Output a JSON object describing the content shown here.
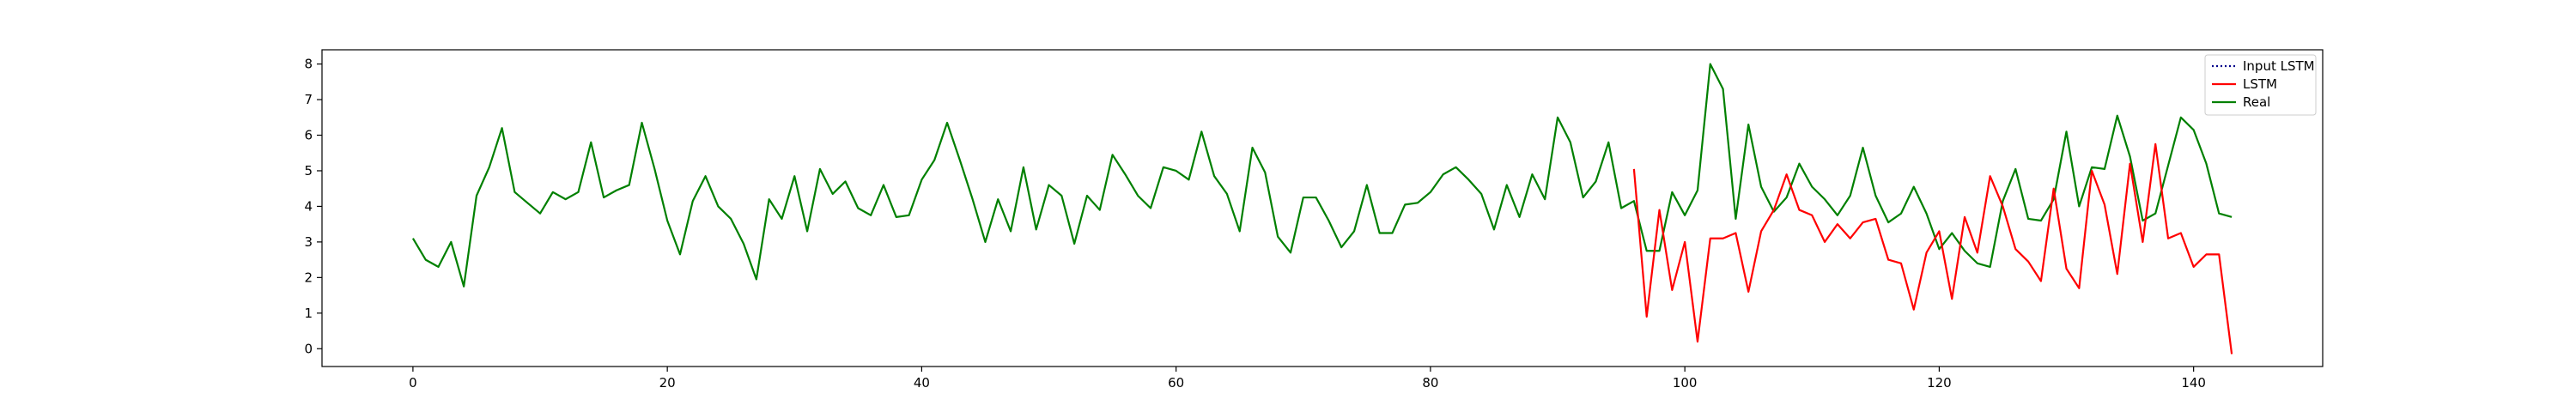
{
  "chart_data": {
    "type": "line",
    "title": "",
    "xlabel": "",
    "ylabel": "",
    "xlim": [
      -7.15,
      150.15
    ],
    "ylim": [
      -0.5,
      8.4
    ],
    "x_ticks": [
      0,
      20,
      40,
      60,
      80,
      100,
      120,
      140
    ],
    "y_ticks": [
      0,
      1,
      2,
      3,
      4,
      5,
      6,
      7,
      8
    ],
    "grid": false,
    "legend_position": "top-right",
    "series": [
      {
        "name": "Input LSTM",
        "color": "#00008b",
        "style": "dotted",
        "x": [],
        "y": []
      },
      {
        "name": "LSTM",
        "color": "#ff0000",
        "style": "solid",
        "x": [
          96,
          97,
          98,
          99,
          100,
          101,
          102,
          103,
          104,
          105,
          106,
          107,
          108,
          109,
          110,
          111,
          112,
          113,
          114,
          115,
          116,
          117,
          118,
          119,
          120,
          121,
          122,
          123,
          124,
          125,
          126,
          127,
          128,
          129,
          130,
          131,
          132,
          133,
          134,
          135,
          136,
          137,
          138,
          139,
          140,
          141,
          142,
          143
        ],
        "y": [
          5.05,
          0.9,
          3.9,
          1.65,
          3.0,
          0.2,
          3.1,
          3.1,
          3.25,
          1.6,
          3.3,
          3.9,
          4.9,
          3.9,
          3.75,
          3.0,
          3.5,
          3.1,
          3.55,
          3.65,
          2.5,
          2.4,
          1.1,
          2.7,
          3.3,
          1.4,
          3.7,
          2.7,
          4.85,
          4.0,
          2.8,
          2.45,
          1.9,
          4.5,
          2.25,
          1.7,
          5.0,
          4.05,
          2.1,
          5.2,
          3.0,
          5.75,
          3.1,
          3.25,
          2.3,
          2.65,
          2.65,
          -0.15
        ]
      },
      {
        "name": "Real",
        "color": "#008000",
        "style": "solid",
        "x": [
          0,
          1,
          2,
          3,
          4,
          5,
          6,
          7,
          8,
          9,
          10,
          11,
          12,
          13,
          14,
          15,
          16,
          17,
          18,
          19,
          20,
          21,
          22,
          23,
          24,
          25,
          26,
          27,
          28,
          29,
          30,
          31,
          32,
          33,
          34,
          35,
          36,
          37,
          38,
          39,
          40,
          41,
          42,
          43,
          44,
          45,
          46,
          47,
          48,
          49,
          50,
          51,
          52,
          53,
          54,
          55,
          56,
          57,
          58,
          59,
          60,
          61,
          62,
          63,
          64,
          65,
          66,
          67,
          68,
          69,
          70,
          71,
          72,
          73,
          74,
          75,
          76,
          77,
          78,
          79,
          80,
          81,
          82,
          83,
          84,
          85,
          86,
          87,
          88,
          89,
          90,
          91,
          92,
          93,
          94,
          95,
          96,
          97,
          98,
          99,
          100,
          101,
          102,
          103,
          104,
          105,
          106,
          107,
          108,
          109,
          110,
          111,
          112,
          113,
          114,
          115,
          116,
          117,
          118,
          119,
          120,
          121,
          122,
          123,
          124,
          125,
          126,
          127,
          128,
          129,
          130,
          131,
          132,
          133,
          134,
          135,
          136,
          137,
          138,
          139,
          140,
          141,
          142,
          143
        ],
        "y": [
          3.1,
          2.5,
          2.3,
          3.0,
          1.75,
          4.3,
          5.1,
          6.2,
          4.4,
          4.1,
          3.8,
          4.4,
          4.2,
          4.4,
          5.8,
          4.25,
          4.45,
          4.6,
          6.35,
          5.05,
          3.6,
          2.65,
          4.15,
          4.85,
          4.0,
          3.65,
          2.95,
          1.95,
          4.2,
          3.65,
          4.85,
          3.3,
          5.05,
          4.35,
          4.7,
          3.95,
          3.75,
          4.6,
          3.7,
          3.75,
          4.75,
          5.3,
          6.35,
          5.3,
          4.2,
          3.0,
          4.2,
          3.3,
          5.1,
          3.35,
          4.6,
          4.3,
          2.95,
          4.3,
          3.9,
          5.45,
          4.9,
          4.3,
          3.95,
          5.1,
          5.0,
          4.75,
          6.1,
          4.85,
          4.35,
          3.3,
          5.65,
          4.95,
          3.15,
          2.7,
          4.25,
          4.25,
          3.6,
          2.85,
          3.3,
          4.6,
          3.25,
          3.25,
          4.05,
          4.1,
          4.4,
          4.9,
          5.1,
          4.75,
          4.35,
          3.35,
          4.6,
          3.7,
          4.9,
          4.2,
          6.5,
          5.8,
          4.25,
          4.7,
          5.8,
          3.95,
          4.15,
          2.75,
          2.75,
          4.4,
          3.75,
          4.45,
          8.0,
          7.3,
          3.65,
          6.3,
          4.55,
          3.85,
          4.25,
          5.2,
          4.55,
          4.2,
          3.75,
          4.3,
          5.65,
          4.3,
          3.55,
          3.8,
          4.55,
          3.8,
          2.8,
          3.25,
          2.75,
          2.4,
          2.3,
          4.15,
          5.05,
          3.65,
          3.6,
          4.2,
          6.1,
          4.0,
          5.1,
          5.05,
          6.55,
          5.4,
          3.6,
          3.8,
          5.15,
          6.5,
          6.15,
          5.2,
          3.8,
          3.7
        ]
      }
    ]
  }
}
